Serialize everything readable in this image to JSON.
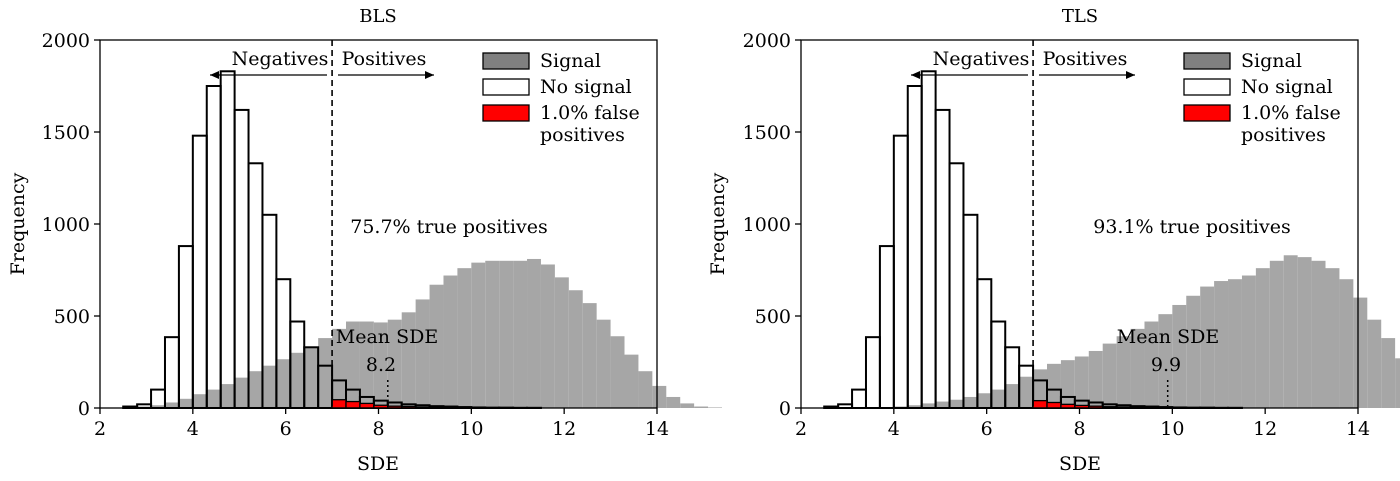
{
  "chart_data": [
    {
      "type": "bar",
      "title": "BLS",
      "xlabel": "SDE",
      "ylabel": "Frequency",
      "xlim": [
        2,
        14
      ],
      "ylim": [
        0,
        2000
      ],
      "xticks": [
        2,
        4,
        6,
        8,
        10,
        12,
        14
      ],
      "yticks": [
        0,
        500,
        1000,
        1500,
        2000
      ],
      "bin_width": 0.3,
      "threshold": 7.0,
      "legend": [
        "Signal",
        "No signal",
        "1.0% false\npositives"
      ],
      "legend_placement": "top-right",
      "annotations": {
        "negatives": "Negatives",
        "positives": "Positives",
        "true_positives": "75.7% true positives",
        "mean_label": "Mean SDE",
        "mean_value": "8.2"
      },
      "mean_sde": 8.2,
      "series": [
        {
          "name": "Signal",
          "x_start": 2.5,
          "values": [
            3,
            8,
            15,
            30,
            50,
            75,
            100,
            130,
            165,
            200,
            230,
            265,
            300,
            330,
            380,
            430,
            470,
            470,
            465,
            480,
            520,
            590,
            670,
            720,
            760,
            790,
            800,
            800,
            800,
            810,
            780,
            710,
            640,
            570,
            480,
            390,
            290,
            200,
            120,
            60,
            25,
            8,
            3
          ]
        },
        {
          "name": "No signal",
          "x_start": 2.5,
          "values": [
            8,
            20,
            100,
            385,
            880,
            1480,
            1750,
            1830,
            1620,
            1330,
            1050,
            700,
            470,
            330,
            230,
            150,
            100,
            60,
            40,
            30,
            20,
            15,
            10,
            8,
            5,
            3,
            2,
            2,
            1,
            1
          ]
        },
        {
          "name": "1.0% false positives",
          "x_start": 7.0,
          "values": [
            45,
            35,
            25,
            15,
            10,
            8,
            5,
            4,
            3,
            2,
            2,
            1
          ]
        }
      ]
    },
    {
      "type": "bar",
      "title": "TLS",
      "xlabel": "SDE",
      "ylabel": "Frequency",
      "xlim": [
        2,
        14
      ],
      "ylim": [
        0,
        2000
      ],
      "xticks": [
        2,
        4,
        6,
        8,
        10,
        12,
        14
      ],
      "yticks": [
        0,
        500,
        1000,
        1500,
        2000
      ],
      "bin_width": 0.3,
      "threshold": 7.0,
      "legend": [
        "Signal",
        "No signal",
        "1.0% false\npositives"
      ],
      "legend_placement": "top-right",
      "annotations": {
        "negatives": "Negatives",
        "positives": "Positives",
        "true_positives": "93.1% true positives",
        "mean_label": "Mean SDE",
        "mean_value": "9.9"
      },
      "mean_sde": 9.9,
      "series": [
        {
          "name": "Signal",
          "x_start": 3.7,
          "values": [
            3,
            8,
            15,
            25,
            35,
            45,
            60,
            80,
            100,
            130,
            170,
            210,
            240,
            260,
            280,
            310,
            350,
            390,
            430,
            470,
            510,
            560,
            610,
            660,
            690,
            700,
            720,
            760,
            800,
            830,
            820,
            800,
            760,
            700,
            600,
            480,
            380,
            270,
            170,
            100,
            50,
            20,
            8
          ]
        },
        {
          "name": "No signal",
          "x_start": 2.5,
          "values": [
            8,
            20,
            100,
            385,
            880,
            1480,
            1750,
            1830,
            1620,
            1330,
            1050,
            700,
            470,
            330,
            230,
            150,
            100,
            60,
            40,
            30,
            20,
            15,
            10,
            8,
            5,
            3,
            2,
            2,
            1,
            1
          ]
        },
        {
          "name": "1.0% false positives",
          "x_start": 7.0,
          "values": [
            40,
            30,
            20,
            14,
            10,
            7,
            5,
            4,
            3,
            2,
            2,
            1
          ]
        }
      ]
    }
  ]
}
